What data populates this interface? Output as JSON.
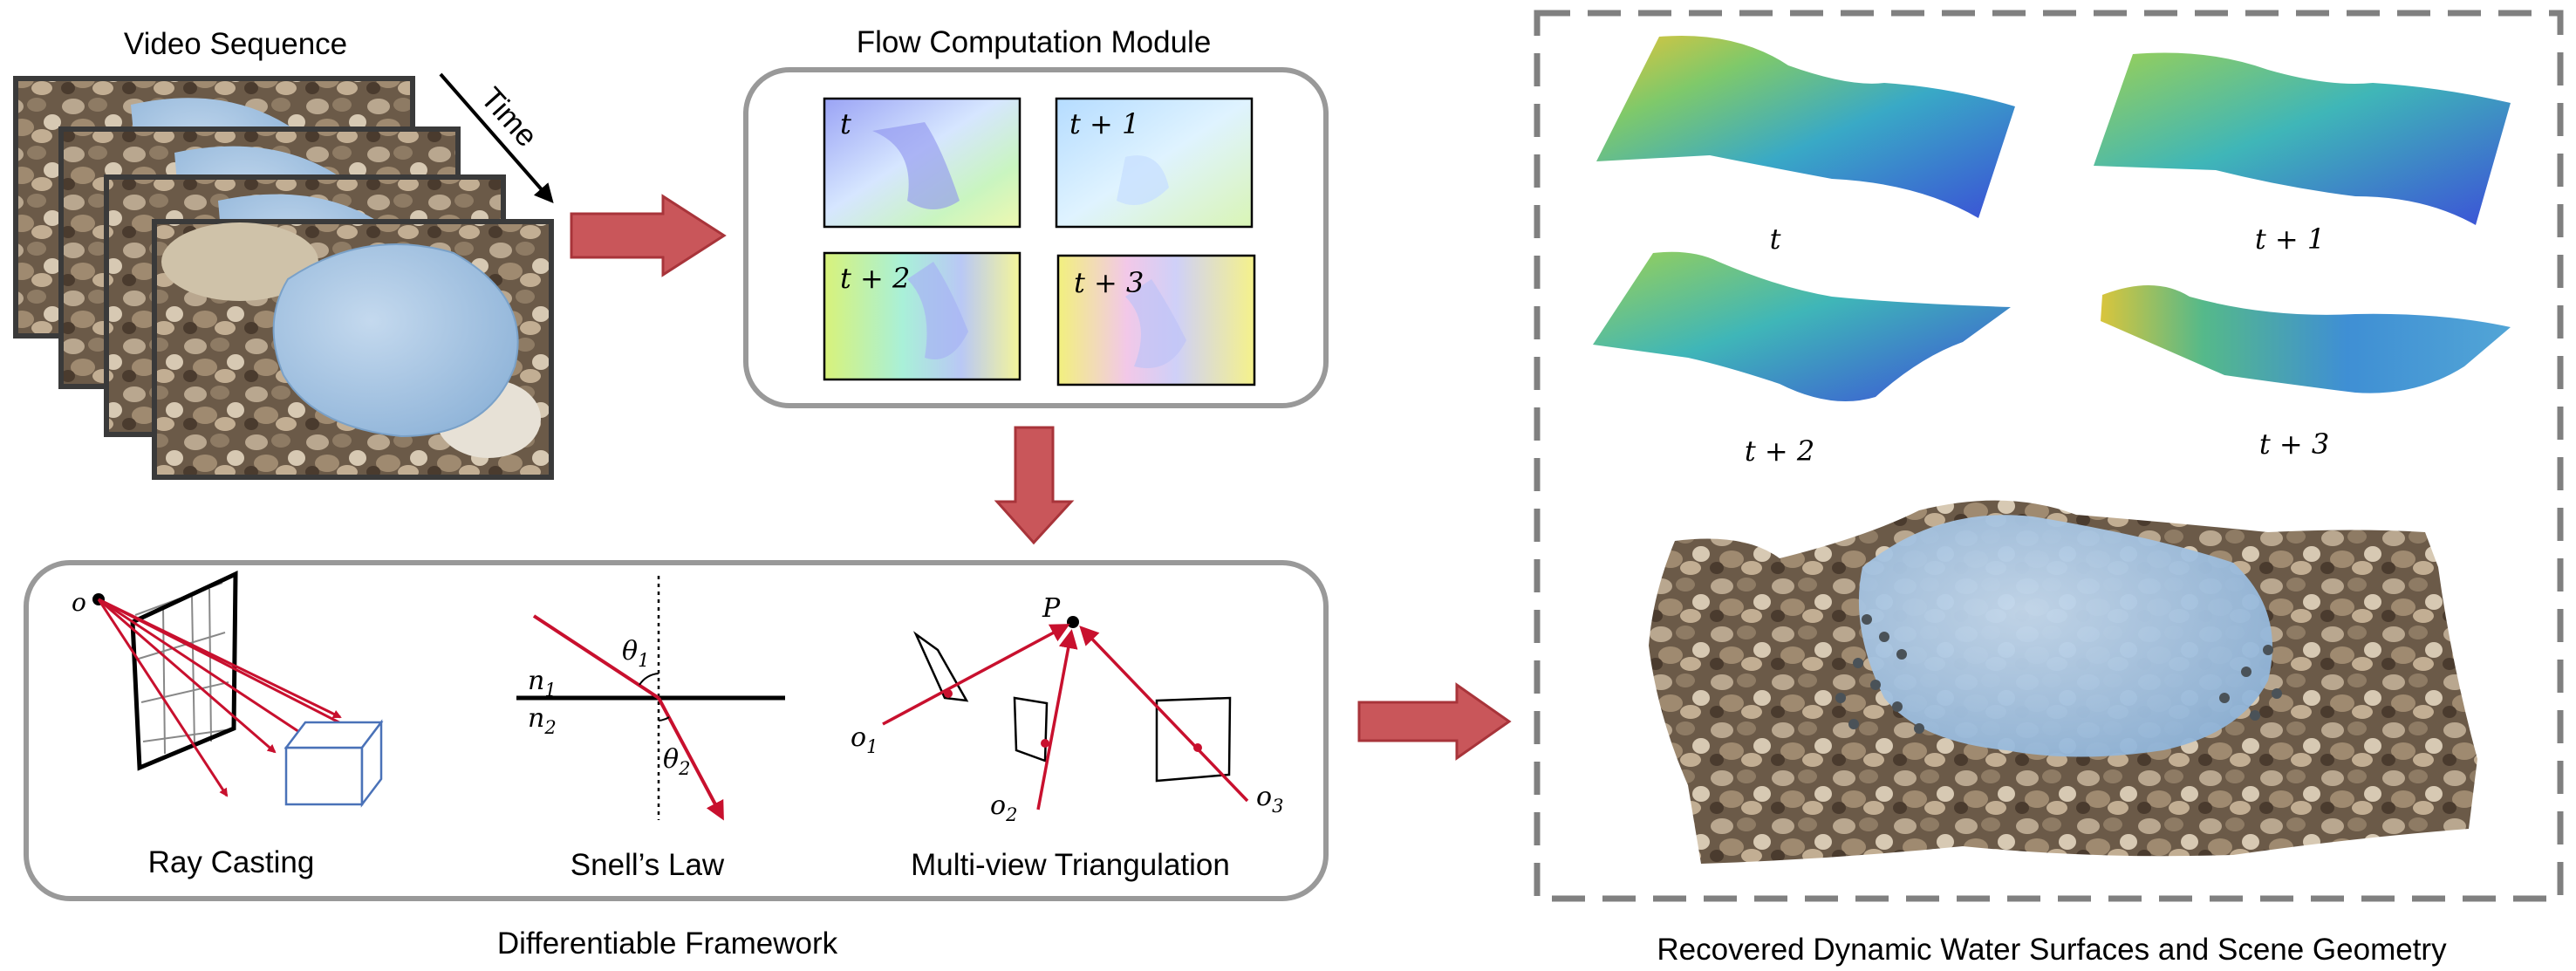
{
  "titles": {
    "video_sequence": "Video Sequence",
    "time": "Time",
    "flow_module": "Flow Computation Module",
    "framework": "Differentiable Framework",
    "recovered": "Recovered Dynamic Water Surfaces and Scene Geometry"
  },
  "flow_frames": [
    "t",
    "t + 1",
    "t + 2",
    "t + 3"
  ],
  "surface_labels": [
    "t",
    "t + 1",
    "t + 2",
    "t + 3"
  ],
  "framework": {
    "ray_casting": {
      "label": "Ray Casting",
      "origin": "o"
    },
    "snells_law": {
      "label": "Snell’s Law",
      "n1": "n",
      "n1_sub": "1",
      "n2": "n",
      "n2_sub": "2",
      "theta1": "θ",
      "theta1_sub": "1",
      "theta2": "θ",
      "theta2_sub": "2"
    },
    "triangulation": {
      "label": "Multi-view Triangulation",
      "point": "P",
      "o1": "o",
      "o1_sub": "1",
      "o2": "o",
      "o2_sub": "2",
      "o3": "o",
      "o3_sub": "3"
    }
  },
  "colors": {
    "arrow_fill": "#c9565a",
    "arrow_stroke": "#a8343a",
    "ray": "#c8102e",
    "box_border": "#999999",
    "cube": "#4a72b8"
  }
}
